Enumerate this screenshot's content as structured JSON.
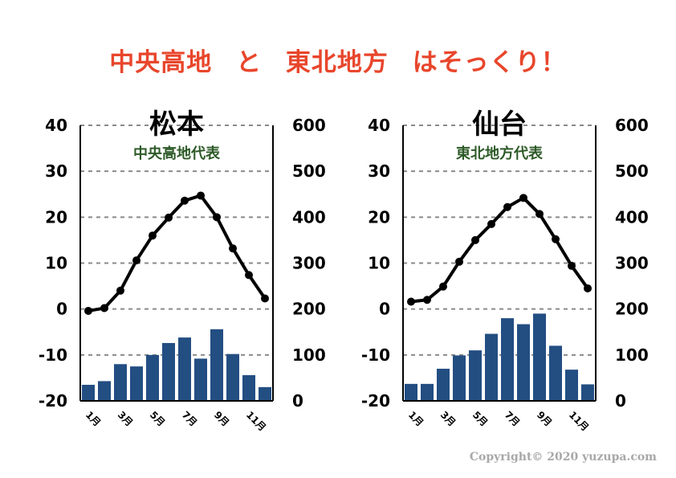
{
  "headline": {
    "part1": "中央高地",
    "part2": "と",
    "part3": "東北地方",
    "part4": "はそっくり！"
  },
  "colors": {
    "headline": "#e8462c",
    "subtitle": "#2d5a27",
    "bar": "#234e82",
    "line": "#000000",
    "grid": "#8a8a8a"
  },
  "copyright": "Copyright© 2020 yuzupa.com",
  "chart_data": [
    {
      "type": "bar+line",
      "title": "松本",
      "subtitle": "中央高地代表",
      "months": [
        "1月",
        "2月",
        "3月",
        "4月",
        "5月",
        "6月",
        "7月",
        "8月",
        "9月",
        "10月",
        "11月",
        "12月"
      ],
      "x_tick_labels": [
        "1月",
        "",
        "3月",
        "",
        "5月",
        "",
        "7月",
        "",
        "9月",
        "",
        "11月",
        ""
      ],
      "temperature": [
        -0.4,
        0.2,
        4.0,
        10.6,
        16.0,
        19.9,
        23.6,
        24.7,
        20.0,
        13.2,
        7.4,
        2.3
      ],
      "precipitation": [
        35,
        43,
        80,
        75,
        100,
        126,
        138,
        92,
        156,
        102,
        56,
        30
      ],
      "left_axis": {
        "min": -20,
        "max": 40,
        "ticks": [
          -20,
          -10,
          0,
          10,
          20,
          30,
          40
        ]
      },
      "right_axis": {
        "min": 0,
        "max": 600,
        "ticks": [
          0,
          100,
          200,
          300,
          400,
          500,
          600
        ]
      }
    },
    {
      "type": "bar+line",
      "title": "仙台",
      "subtitle": "東北地方代表",
      "months": [
        "1月",
        "2月",
        "3月",
        "4月",
        "5月",
        "6月",
        "7月",
        "8月",
        "9月",
        "10月",
        "11月",
        "12月"
      ],
      "x_tick_labels": [
        "1月",
        "",
        "3月",
        "",
        "5月",
        "",
        "7月",
        "",
        "9月",
        "",
        "11月",
        ""
      ],
      "temperature": [
        1.6,
        2.0,
        4.9,
        10.3,
        15.0,
        18.5,
        22.2,
        24.2,
        20.7,
        15.2,
        9.4,
        4.5
      ],
      "precipitation": [
        37,
        37,
        70,
        99,
        110,
        146,
        180,
        167,
        190,
        120,
        68,
        36
      ],
      "left_axis": {
        "min": -20,
        "max": 40,
        "ticks": [
          -20,
          -10,
          0,
          10,
          20,
          30,
          40
        ]
      },
      "right_axis": {
        "min": 0,
        "max": 600,
        "ticks": [
          0,
          100,
          200,
          300,
          400,
          500,
          600
        ]
      }
    }
  ]
}
